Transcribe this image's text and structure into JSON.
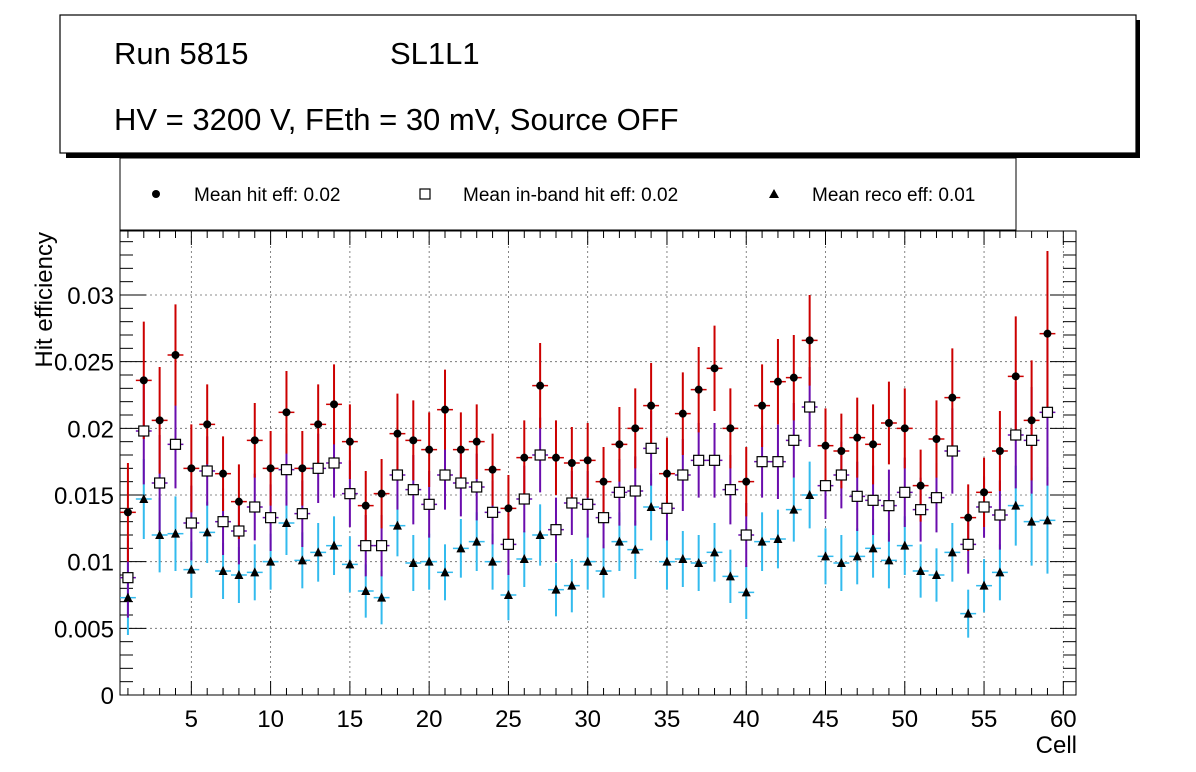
{
  "chart_data": {
    "type": "scatter",
    "title_box": {
      "line1_left": "Run 5815",
      "line1_right": "SL1L1",
      "line2": "HV = 3200 V, FEth = 30 mV, Source OFF"
    },
    "legend": [
      {
        "label": "Mean hit  eff: 0.02",
        "marker": "circle"
      },
      {
        "label": "Mean in-band hit eff: 0.02",
        "marker": "open-square"
      },
      {
        "label": "Mean reco eff: 0.01",
        "marker": "triangle"
      }
    ],
    "xlabel": "Cell",
    "ylabel": "Hit efficiency",
    "xlim": [
      0.5,
      60.8
    ],
    "ylim": [
      0,
      0.0348
    ],
    "xticks": [
      5,
      10,
      15,
      20,
      25,
      30,
      35,
      40,
      45,
      50,
      55,
      60
    ],
    "xtick_labels": [
      "5",
      "10",
      "15",
      "20",
      "25",
      "30",
      "35",
      "40",
      "45",
      "50",
      "55",
      "60"
    ],
    "yticks": [
      0,
      0.005,
      0.01,
      0.015,
      0.02,
      0.025,
      0.03
    ],
    "ytick_labels": [
      "0",
      "0.005",
      "0.01",
      "0.015",
      "0.02",
      "0.025",
      "0.03"
    ],
    "grid": true,
    "colors": {
      "hit": "#cc0000",
      "inband": "#6a0dad",
      "reco": "#33bbee"
    },
    "series": [
      {
        "name": "hit",
        "values": [
          0.0137,
          0.0236,
          0.0206,
          0.0255,
          0.017,
          0.0203,
          0.0166,
          0.0145,
          0.0191,
          0.017,
          0.0212,
          0.017,
          0.0203,
          0.0218,
          0.019,
          0.0142,
          0.0151,
          0.0196,
          0.0191,
          0.0184,
          0.0214,
          0.0184,
          0.019,
          0.0169,
          0.014,
          0.0178,
          0.0232,
          0.0178,
          0.0174,
          0.0176,
          0.016,
          0.0188,
          0.02,
          0.0217,
          0.0166,
          0.0211,
          0.0229,
          0.0245,
          0.02,
          0.016,
          0.0217,
          0.0235,
          0.0238,
          0.0266,
          0.0187,
          0.0183,
          0.0193,
          0.0188,
          0.0204,
          0.02,
          0.0157,
          0.0192,
          0.0223,
          0.0133,
          0.0152,
          0.0183,
          0.0239,
          0.0206,
          0.0271
        ],
        "errors": [
          0.0037,
          0.0044,
          0.004,
          0.0038,
          0.0033,
          0.003,
          0.0028,
          0.0028,
          0.0028,
          0.0028,
          0.0031,
          0.0028,
          0.003,
          0.003,
          0.0028,
          0.0026,
          0.0026,
          0.003,
          0.003,
          0.0028,
          0.003,
          0.0028,
          0.0028,
          0.0027,
          0.0025,
          0.0028,
          0.0032,
          0.0028,
          0.0027,
          0.0028,
          0.0026,
          0.0028,
          0.003,
          0.0032,
          0.0027,
          0.0031,
          0.0032,
          0.0032,
          0.003,
          0.0026,
          0.0031,
          0.0032,
          0.0032,
          0.0034,
          0.0028,
          0.0028,
          0.003,
          0.003,
          0.0031,
          0.003,
          0.0027,
          0.0029,
          0.0037,
          0.0025,
          0.0026,
          0.003,
          0.0045,
          0.0045,
          0.0062
        ]
      },
      {
        "name": "inband",
        "values": [
          0.0088,
          0.0198,
          0.0159,
          0.0188,
          0.0129,
          0.0168,
          0.013,
          0.0123,
          0.0141,
          0.0133,
          0.0169,
          0.0136,
          0.017,
          0.0174,
          0.0151,
          0.0112,
          0.0112,
          0.0165,
          0.0154,
          0.0143,
          0.0165,
          0.0159,
          0.0156,
          0.0137,
          0.0113,
          0.0147,
          0.018,
          0.0124,
          0.0144,
          0.0143,
          0.0133,
          0.0152,
          0.0153,
          0.0185,
          0.014,
          0.0165,
          0.0176,
          0.0176,
          0.0154,
          0.012,
          0.0175,
          0.0175,
          0.0191,
          0.0216,
          0.0157,
          0.0165,
          0.0149,
          0.0146,
          0.0142,
          0.0152,
          0.0139,
          0.0148,
          0.0183,
          0.0113,
          0.0141,
          0.0135,
          0.0195,
          0.0191,
          0.0212
        ],
        "errors": [
          0.003,
          0.004,
          0.0036,
          0.0033,
          0.0028,
          0.0026,
          0.0025,
          0.0025,
          0.0025,
          0.0025,
          0.0027,
          0.0025,
          0.0026,
          0.0026,
          0.0025,
          0.0023,
          0.0023,
          0.0026,
          0.0026,
          0.0025,
          0.0026,
          0.0025,
          0.0025,
          0.0024,
          0.0023,
          0.0025,
          0.0028,
          0.0024,
          0.0024,
          0.0025,
          0.0023,
          0.0025,
          0.0026,
          0.0028,
          0.0024,
          0.0027,
          0.0028,
          0.0028,
          0.0026,
          0.0024,
          0.0027,
          0.0028,
          0.0028,
          0.003,
          0.0025,
          0.0025,
          0.0026,
          0.0026,
          0.0027,
          0.0026,
          0.0024,
          0.0026,
          0.0032,
          0.0022,
          0.0023,
          0.0026,
          0.004,
          0.004,
          0.0055
        ]
      },
      {
        "name": "reco",
        "values": [
          0.0073,
          0.0147,
          0.012,
          0.0121,
          0.0094,
          0.0122,
          0.0093,
          0.009,
          0.0092,
          0.01,
          0.0129,
          0.0101,
          0.0107,
          0.0112,
          0.0098,
          0.0078,
          0.0073,
          0.0127,
          0.0099,
          0.01,
          0.0092,
          0.011,
          0.0115,
          0.01,
          0.0075,
          0.0102,
          0.012,
          0.0079,
          0.0082,
          0.01,
          0.0093,
          0.0115,
          0.0109,
          0.0141,
          0.01,
          0.0102,
          0.0099,
          0.0107,
          0.0089,
          0.0077,
          0.0115,
          0.0117,
          0.0139,
          0.015,
          0.0104,
          0.0099,
          0.0104,
          0.011,
          0.0101,
          0.0112,
          0.0093,
          0.009,
          0.0107,
          0.0061,
          0.0082,
          0.0092,
          0.0142,
          0.013,
          0.0131
        ],
        "errors": [
          0.0028,
          0.003,
          0.0028,
          0.0028,
          0.0021,
          0.0023,
          0.0021,
          0.0021,
          0.0021,
          0.0021,
          0.0024,
          0.0021,
          0.0022,
          0.0022,
          0.0021,
          0.002,
          0.002,
          0.0023,
          0.0021,
          0.0021,
          0.0021,
          0.0022,
          0.0022,
          0.0021,
          0.0019,
          0.0021,
          0.0023,
          0.002,
          0.002,
          0.0021,
          0.002,
          0.0022,
          0.0022,
          0.0025,
          0.0021,
          0.0021,
          0.0021,
          0.0022,
          0.002,
          0.002,
          0.0022,
          0.0022,
          0.0024,
          0.0025,
          0.0021,
          0.0021,
          0.0021,
          0.0022,
          0.0021,
          0.0022,
          0.002,
          0.002,
          0.0022,
          0.0018,
          0.002,
          0.0021,
          0.003,
          0.0033,
          0.004
        ]
      }
    ]
  }
}
